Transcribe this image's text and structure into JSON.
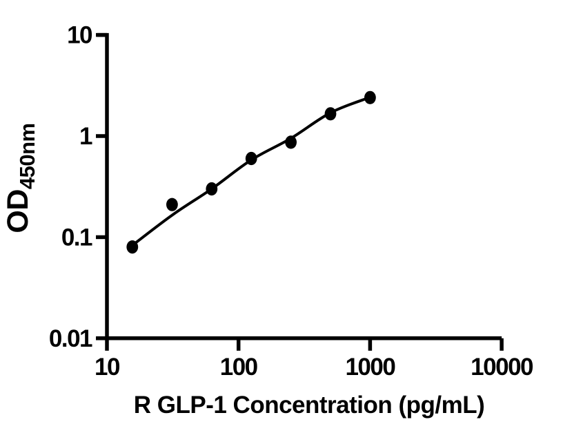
{
  "chart_data": {
    "type": "scatter",
    "title": "",
    "xlabel": "R GLP-1 Concentration (pg/mL)",
    "ylabel": "OD",
    "ylabel_subscript": "450nm",
    "x_scale": "log",
    "y_scale": "log",
    "xlim": [
      10,
      10000
    ],
    "ylim": [
      0.01,
      10
    ],
    "x_ticks": [
      10,
      100,
      1000,
      10000
    ],
    "x_tick_labels": [
      "10",
      "100",
      "1000",
      "10000"
    ],
    "y_ticks": [
      10,
      1,
      0.1,
      0.01
    ],
    "y_tick_labels": [
      "10",
      "1",
      "0.1",
      "0.01"
    ],
    "grid": false,
    "legend": "none",
    "series": [
      {
        "name": "standard-points",
        "type": "scatter",
        "x": [
          15.6,
          31.25,
          62.5,
          125,
          250,
          500,
          1000
        ],
        "y": [
          0.08,
          0.21,
          0.3,
          0.6,
          0.87,
          1.66,
          2.4
        ]
      },
      {
        "name": "fit-curve",
        "type": "line",
        "x": [
          15.6,
          31.25,
          62.5,
          125,
          250,
          500,
          1000
        ],
        "y": [
          0.083,
          0.165,
          0.3,
          0.58,
          0.95,
          1.7,
          2.42
        ]
      }
    ],
    "colors": {
      "axis": "#000000",
      "marker": "#000000",
      "curve": "#000000",
      "background": "#ffffff"
    }
  }
}
